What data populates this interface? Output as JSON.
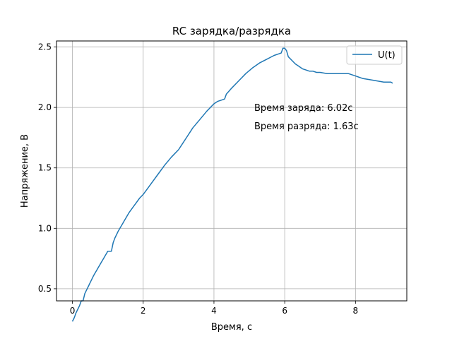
{
  "chart_data": {
    "type": "line",
    "title": "RC зарядка/разрядка",
    "xlabel": "Время, с",
    "ylabel": "Напряжение, В",
    "xlim": [
      -0.45,
      9.45
    ],
    "ylim": [
      0.4,
      2.55
    ],
    "grid": true,
    "legend_position": "top-right",
    "x_ticks": [
      0,
      2,
      4,
      6,
      8
    ],
    "y_ticks": [
      0.5,
      1.0,
      1.5,
      2.0,
      2.5
    ],
    "x_tick_labels": [
      "0",
      "2",
      "4",
      "6",
      "8"
    ],
    "y_tick_labels": [
      "0.5",
      "1.0",
      "1.5",
      "2.0",
      "2.5"
    ],
    "series": [
      {
        "name": "U(t)",
        "color": "#1f77b4",
        "x": [
          0.0,
          0.05,
          0.1,
          0.15,
          0.2,
          0.25,
          0.3,
          0.35,
          0.4,
          0.45,
          0.5,
          0.6,
          0.7,
          0.8,
          0.9,
          1.0,
          1.05,
          1.1,
          1.15,
          1.2,
          1.3,
          1.4,
          1.5,
          1.6,
          1.7,
          1.8,
          1.9,
          2.0,
          2.2,
          2.4,
          2.6,
          2.8,
          3.0,
          3.2,
          3.4,
          3.6,
          3.8,
          4.0,
          4.1,
          4.2,
          4.3,
          4.35,
          4.5,
          4.7,
          4.9,
          5.1,
          5.3,
          5.5,
          5.7,
          5.8,
          5.9,
          5.95,
          6.0,
          6.05,
          6.1,
          6.2,
          6.3,
          6.4,
          6.5,
          6.6,
          6.7,
          6.8,
          6.9,
          7.0,
          7.2,
          7.4,
          7.6,
          7.8,
          8.0,
          8.2,
          8.4,
          8.6,
          8.8,
          9.0,
          9.05
        ],
        "y": [
          0.23,
          0.26,
          0.3,
          0.33,
          0.36,
          0.4,
          0.4,
          0.46,
          0.49,
          0.52,
          0.55,
          0.61,
          0.66,
          0.71,
          0.76,
          0.81,
          0.81,
          0.81,
          0.88,
          0.92,
          0.98,
          1.03,
          1.08,
          1.13,
          1.17,
          1.21,
          1.25,
          1.28,
          1.36,
          1.44,
          1.52,
          1.59,
          1.65,
          1.74,
          1.83,
          1.9,
          1.97,
          2.03,
          2.05,
          2.06,
          2.07,
          2.11,
          2.16,
          2.22,
          2.28,
          2.33,
          2.37,
          2.4,
          2.43,
          2.44,
          2.45,
          2.49,
          2.49,
          2.47,
          2.42,
          2.39,
          2.36,
          2.34,
          2.32,
          2.31,
          2.3,
          2.3,
          2.29,
          2.29,
          2.28,
          2.28,
          2.28,
          2.28,
          2.26,
          2.24,
          2.23,
          2.22,
          2.21,
          2.21,
          2.2
        ]
      }
    ],
    "annotations": [
      "Время заряда:  6.02с",
      "Время разряда: 1.63с"
    ]
  }
}
